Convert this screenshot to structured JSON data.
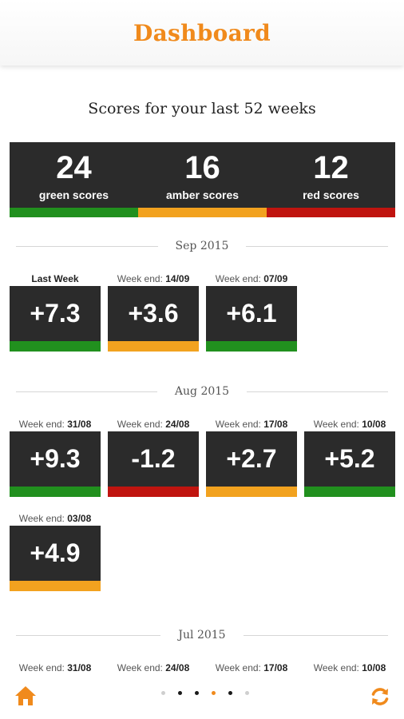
{
  "header": {
    "title": "Dashboard"
  },
  "subtitle": "Scores for your last 52 weeks",
  "colors": {
    "accent": "#f08a1c",
    "green": "#21901e",
    "amber": "#f2a21f",
    "red": "#c0140f",
    "panel": "#2b2b2b"
  },
  "summary": [
    {
      "count": "24",
      "label": "green scores",
      "status": "green"
    },
    {
      "count": "16",
      "label": "amber scores",
      "status": "amber"
    },
    {
      "count": "12",
      "label": "red scores",
      "status": "red"
    }
  ],
  "sections": [
    {
      "month": "Sep 2015",
      "weeks": [
        {
          "label": "Last Week",
          "score": "+7.3",
          "status": "green"
        },
        {
          "prefix": "Week end: ",
          "date": "14/09",
          "score": "+3.6",
          "status": "amber"
        },
        {
          "prefix": "Week end: ",
          "date": "07/09",
          "score": "+6.1",
          "status": "green"
        }
      ]
    },
    {
      "month": "Aug 2015",
      "weeks": [
        {
          "prefix": "Week end: ",
          "date": "31/08",
          "score": "+9.3",
          "status": "green"
        },
        {
          "prefix": "Week end: ",
          "date": "24/08",
          "score": "-1.2",
          "status": "red"
        },
        {
          "prefix": "Week end: ",
          "date": "17/08",
          "score": "+2.7",
          "status": "amber"
        },
        {
          "prefix": "Week end: ",
          "date": "10/08",
          "score": "+5.2",
          "status": "green"
        },
        {
          "prefix": "Week end: ",
          "date": "03/08",
          "score": "+4.9",
          "status": "amber"
        }
      ]
    },
    {
      "month": "Jul 2015",
      "weeks": [
        {
          "prefix": "Week end: ",
          "date": "31/08"
        },
        {
          "prefix": "Week end: ",
          "date": "24/08"
        },
        {
          "prefix": "Week end: ",
          "date": "17/08"
        },
        {
          "prefix": "Week end: ",
          "date": "10/08"
        }
      ]
    }
  ],
  "footer": {
    "home_icon": "home-icon",
    "refresh_icon": "refresh-icon",
    "page_count": 6,
    "active_page": 4
  }
}
